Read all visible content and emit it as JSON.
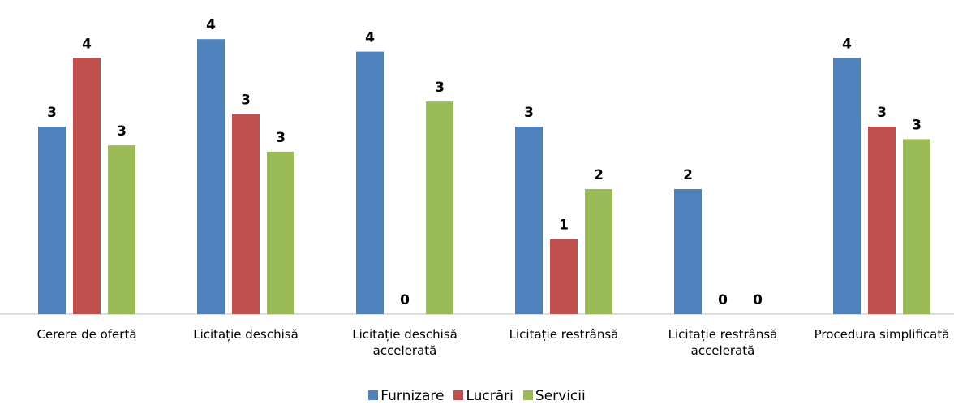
{
  "chart_data": {
    "type": "bar",
    "categories": [
      "Cerere de ofertă",
      "Licitație deschisă",
      "Licitație deschisă accelerată",
      "Licitație restrânsă",
      "Licitație restrânsă accelerată",
      "Procedura simplificată"
    ],
    "series": [
      {
        "name": "Furnizare",
        "color": "#4f81bd",
        "values": [
          3.0,
          4.4,
          4.2,
          3.0,
          2.0,
          4.1
        ],
        "value_labels": [
          "3",
          "4",
          "4",
          "3",
          "2",
          "4"
        ]
      },
      {
        "name": "Lucrări",
        "color": "#c0504d",
        "values": [
          4.1,
          3.2,
          0,
          1.2,
          0,
          3.0
        ],
        "value_labels": [
          "4",
          "3",
          "0",
          "1",
          "0",
          "3"
        ]
      },
      {
        "name": "Servicii",
        "color": "#9bbb59",
        "values": [
          2.7,
          2.6,
          3.4,
          2.0,
          0,
          2.8
        ],
        "value_labels": [
          "3",
          "3",
          "3",
          "2",
          "0",
          "3"
        ]
      }
    ],
    "ylim": [
      0,
      5
    ],
    "legend": "bottom"
  }
}
